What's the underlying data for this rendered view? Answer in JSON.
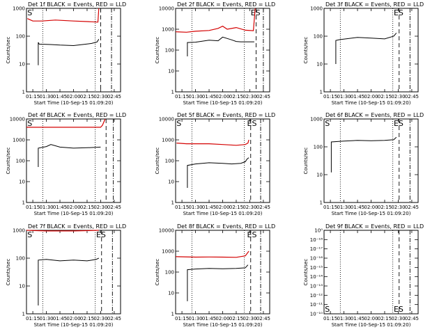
{
  "chart_data": [
    {
      "type": "line",
      "title": "Det 1f BLACK = Events, RED = LLD",
      "xlabel": "Start Time (10-Sep-15 01:09:20)",
      "ylabel": "Counts/sec",
      "yscale": "log",
      "ylim": [
        1,
        1000
      ],
      "xlim": [
        "01:08",
        "02:52"
      ],
      "xticks": [
        "01:15",
        "01:30",
        "01:45",
        "02:00",
        "02:15",
        "02:30",
        "02:45"
      ],
      "yticks": [
        "1",
        "10",
        "100",
        "1000"
      ],
      "markers": {
        "dotted": [
          "01:26",
          "02:24"
        ],
        "dashed": [
          "02:30"
        ],
        "dashdot": [
          "02:42"
        ],
        "labels": [
          {
            "text": "S",
            "x": "01:09"
          }
        ]
      },
      "series": [
        {
          "color": "#000000",
          "x": [
            "01:21",
            "01:21",
            "01:22",
            "01:35",
            "01:45",
            "02:00",
            "02:10",
            "02:20",
            "02:26",
            "02:28"
          ],
          "y": [
            9,
            60,
            52,
            50,
            48,
            46,
            50,
            55,
            62,
            78
          ]
        },
        {
          "color": "#d40000",
          "x": [
            "01:09",
            "01:15",
            "01:25",
            "01:40",
            "02:00",
            "02:20",
            "02:27",
            "02:28"
          ],
          "y": [
            430,
            350,
            350,
            380,
            350,
            330,
            320,
            1000
          ]
        }
      ]
    },
    {
      "type": "line",
      "title": "Det 2f BLACK = Events, RED = LLD",
      "xlabel": "Start Time (10-Sep-15 01:09:20)",
      "ylabel": "Counts/sec",
      "yscale": "log",
      "ylim": [
        1,
        10000
      ],
      "xlim": [
        "01:08",
        "02:52"
      ],
      "xticks": [
        "01:15",
        "01:30",
        "01:45",
        "02:00",
        "02:15",
        "02:30",
        "02:45"
      ],
      "yticks": [
        "1",
        "10",
        "100",
        "1000",
        "10000"
      ],
      "markers": {
        "dotted": [
          "01:26",
          "02:24"
        ],
        "dashed": [
          "02:37"
        ],
        "dashdot": [
          "02:45"
        ],
        "labels": [
          {
            "text": "ES",
            "x": "02:31"
          }
        ]
      },
      "series": [
        {
          "color": "#000000",
          "x": [
            "01:21",
            "01:21",
            "01:30",
            "01:45",
            "01:55",
            "02:00",
            "02:10",
            "02:15",
            "02:20",
            "02:35"
          ],
          "y": [
            50,
            230,
            240,
            300,
            280,
            420,
            310,
            260,
            250,
            250
          ]
        },
        {
          "color": "#d40000",
          "x": [
            "01:08",
            "01:20",
            "01:30",
            "01:45",
            "01:55",
            "02:00",
            "02:05",
            "02:15",
            "02:25",
            "02:34",
            "02:36"
          ],
          "y": [
            750,
            720,
            800,
            870,
            1100,
            1400,
            1000,
            1200,
            900,
            850,
            10000
          ]
        }
      ]
    },
    {
      "type": "line",
      "title": "Det 3f BLACK = Events, RED = LLD",
      "xlabel": "Start Time (10-Sep-15 01:09:20)",
      "ylabel": "Counts/sec",
      "yscale": "log",
      "ylim": [
        1,
        1000
      ],
      "xlim": [
        "01:08",
        "02:52"
      ],
      "xticks": [
        "01:15",
        "01:30",
        "01:45",
        "02:00",
        "02:15",
        "02:30",
        "02:45"
      ],
      "yticks": [
        "1",
        "10",
        "100",
        "1000"
      ],
      "markers": {
        "dotted": [
          "01:26",
          "02:24"
        ],
        "dashed": [
          "02:31"
        ],
        "dashdot": [
          "02:43"
        ],
        "labels": [
          {
            "text": "ES",
            "x": "02:25"
          }
        ]
      },
      "series": [
        {
          "color": "#000000",
          "x": [
            "01:21",
            "01:21",
            "01:25",
            "01:45",
            "02:00",
            "02:15",
            "02:25",
            "02:28"
          ],
          "y": [
            10,
            70,
            75,
            90,
            85,
            80,
            100,
            130
          ]
        }
      ]
    },
    {
      "type": "line",
      "title": "Det 4f BLACK = Events, RED = LLD",
      "xlabel": "Start Time (10-Sep-15 01:09:20)",
      "ylabel": "Counts/sec",
      "yscale": "log",
      "ylim": [
        1,
        10000
      ],
      "xlim": [
        "01:08",
        "02:52"
      ],
      "xticks": [
        "01:15",
        "01:30",
        "01:45",
        "02:00",
        "02:15",
        "02:30",
        "02:45"
      ],
      "yticks": [
        "1",
        "10",
        "100",
        "1000",
        "10000"
      ],
      "markers": {
        "dotted": [
          "01:26",
          "02:24"
        ],
        "dashed": [
          "02:36"
        ],
        "dashdot": [
          "02:44"
        ],
        "labels": [
          {
            "text": "S",
            "x": "01:09"
          }
        ]
      },
      "series": [
        {
          "color": "#000000",
          "x": [
            "01:21",
            "01:21",
            "01:30",
            "01:35",
            "01:45",
            "02:00",
            "02:15",
            "02:30"
          ],
          "y": [
            50,
            400,
            480,
            600,
            450,
            400,
            420,
            450
          ]
        },
        {
          "color": "#d40000",
          "x": [
            "01:08",
            "02:30",
            "02:32",
            "02:35"
          ],
          "y": [
            4000,
            4000,
            5000,
            10000
          ]
        }
      ]
    },
    {
      "type": "line",
      "title": "Det 5f BLACK = Events, RED = LLD",
      "xlabel": "Start Time (10-Sep-15 01:09:20)",
      "ylabel": "Counts/sec",
      "yscale": "log",
      "ylim": [
        1,
        10000
      ],
      "xlim": [
        "01:08",
        "02:52"
      ],
      "xticks": [
        "01:15",
        "01:30",
        "01:45",
        "02:00",
        "02:15",
        "02:30",
        "02:45"
      ],
      "yticks": [
        "1",
        "10",
        "100",
        "1000",
        "10000"
      ],
      "markers": {
        "dotted": [
          "01:26",
          "02:24"
        ],
        "dashed": [
          "02:31"
        ],
        "dashdot": [
          "02:42"
        ],
        "labels": [
          {
            "text": "S",
            "x": "01:09"
          },
          {
            "text": "ES",
            "x": "02:27"
          }
        ]
      },
      "series": [
        {
          "color": "#000000",
          "x": [
            "01:21",
            "01:21",
            "01:30",
            "01:45",
            "02:00",
            "02:10",
            "02:20",
            "02:25",
            "02:27",
            "02:29"
          ],
          "y": [
            5,
            60,
            70,
            80,
            75,
            70,
            75,
            90,
            120,
            140
          ]
        },
        {
          "color": "#d40000",
          "x": [
            "01:09",
            "01:20",
            "01:45",
            "02:00",
            "02:15",
            "02:25",
            "02:28",
            "02:29"
          ],
          "y": [
            700,
            650,
            650,
            600,
            550,
            600,
            700,
            1000
          ]
        }
      ]
    },
    {
      "type": "line",
      "title": "Det 6f BLACK = Events, RED = LLD",
      "xlabel": "Start Time (10-Sep-15 01:09:20)",
      "ylabel": "Counts/sec",
      "yscale": "log",
      "ylim": [
        1,
        1000
      ],
      "xlim": [
        "01:08",
        "02:52"
      ],
      "xticks": [
        "01:15",
        "01:30",
        "01:45",
        "02:00",
        "02:15",
        "02:30",
        "02:45"
      ],
      "yticks": [
        "1",
        "10",
        "100",
        "1000"
      ],
      "markers": {
        "dotted": [
          "01:26",
          "02:24"
        ],
        "dashed": [
          "02:31"
        ],
        "dashdot": [
          "02:43"
        ],
        "labels": [
          {
            "text": "S",
            "x": "01:09"
          },
          {
            "text": "ES",
            "x": "02:25"
          }
        ]
      },
      "series": [
        {
          "color": "#000000",
          "x": [
            "01:16",
            "01:16",
            "01:30",
            "01:45",
            "02:00",
            "02:15",
            "02:25",
            "02:28"
          ],
          "y": [
            12,
            150,
            160,
            170,
            165,
            170,
            180,
            220
          ]
        }
      ]
    },
    {
      "type": "line",
      "title": "Det 7f BLACK = Events, RED = LLD",
      "xlabel": "Start Time (10-Sep-15 01:09:20)",
      "ylabel": "Counts/sec",
      "yscale": "log",
      "ylim": [
        1,
        1000
      ],
      "xlim": [
        "01:08",
        "02:52"
      ],
      "xticks": [
        "01:15",
        "01:30",
        "01:45",
        "02:00",
        "02:15",
        "02:30",
        "02:45"
      ],
      "yticks": [
        "1",
        "10",
        "100",
        "1000"
      ],
      "markers": {
        "dotted": [
          "01:26",
          "02:24"
        ],
        "dashed": [
          "02:31"
        ],
        "dashdot": [
          "02:43"
        ],
        "labels": [
          {
            "text": "S",
            "x": "01:09"
          },
          {
            "text": "ES",
            "x": "02:25"
          }
        ]
      },
      "series": [
        {
          "color": "#000000",
          "x": [
            "01:21",
            "01:21",
            "01:30",
            "01:45",
            "02:00",
            "02:15",
            "02:25",
            "02:28"
          ],
          "y": [
            2,
            85,
            90,
            80,
            85,
            80,
            90,
            100
          ]
        },
        {
          "color": "#d40000",
          "x": [
            "01:08",
            "01:30",
            "02:00",
            "02:28"
          ],
          "y": [
            1000,
            950,
            950,
            1000
          ]
        }
      ]
    },
    {
      "type": "line",
      "title": "Det 8f BLACK = Events, RED = LLD",
      "xlabel": "Start Time (10-Sep-15 01:09:20)",
      "ylabel": "Counts/sec",
      "yscale": "log",
      "ylim": [
        1,
        10000
      ],
      "xlim": [
        "01:08",
        "02:52"
      ],
      "xticks": [
        "01:15",
        "01:30",
        "01:45",
        "02:00",
        "02:15",
        "02:30",
        "02:45"
      ],
      "yticks": [
        "1",
        "10",
        "100",
        "1000",
        "10000"
      ],
      "markers": {
        "dotted": [
          "01:26",
          "02:24"
        ],
        "dashed": [
          "02:31"
        ],
        "dashdot": [
          "02:42"
        ],
        "labels": [
          {
            "text": "ES",
            "x": "02:27"
          }
        ]
      },
      "series": [
        {
          "color": "#000000",
          "x": [
            "01:21",
            "01:21",
            "01:30",
            "01:45",
            "02:00",
            "02:15",
            "02:25",
            "02:28"
          ],
          "y": [
            4,
            130,
            140,
            150,
            145,
            150,
            160,
            220
          ]
        },
        {
          "color": "#d40000",
          "x": [
            "01:08",
            "01:30",
            "01:45",
            "02:00",
            "02:15",
            "02:25",
            "02:29"
          ],
          "y": [
            550,
            520,
            530,
            520,
            510,
            600,
            1000
          ]
        }
      ]
    },
    {
      "type": "line",
      "title": "Det 9f BLACK = Events, RED = LLD",
      "xlabel": "Start Time (10-Sep-15 01:09:20)",
      "ylabel": "Counts/sec",
      "yscale": "log",
      "ylim": [
        1e-10,
        1e-09
      ],
      "xlim": [
        "01:08",
        "02:52"
      ],
      "xticks": [
        "01:15",
        "01:30",
        "01:45",
        "02:00",
        "02:15",
        "02:30",
        "02:45"
      ],
      "yticks": [
        "10⁻¹⁰",
        "10⁻¹¹",
        "10⁻¹²",
        "10⁻¹³",
        "10⁻¹⁴",
        "10⁻¹⁵",
        "10⁻¹⁶",
        "10⁻¹⁷",
        "10⁻¹⁸",
        "10⁰"
      ],
      "markers": {
        "dotted": [
          "01:26",
          "02:24"
        ],
        "dashed": [
          "02:31"
        ],
        "dashdot": [
          "02:43"
        ],
        "labels": [
          {
            "text": "S",
            "x": "01:09"
          },
          {
            "text": "ES",
            "x": "02:25"
          }
        ]
      },
      "series": []
    }
  ]
}
